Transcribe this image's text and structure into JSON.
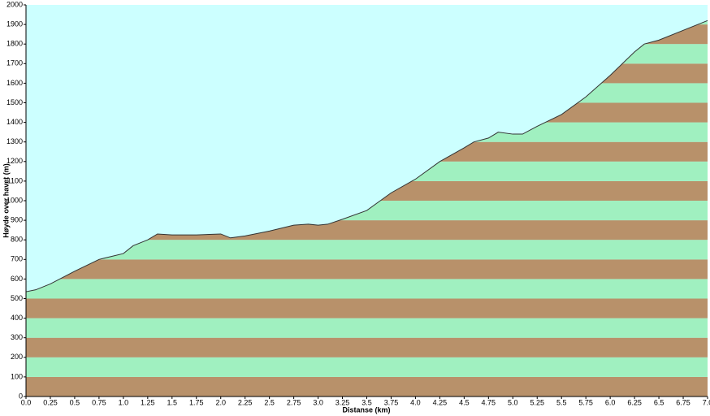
{
  "chart_data": {
    "type": "area",
    "xlabel": "Distanse  (km)",
    "ylabel": "Høyde over havet (m)",
    "x": [
      0,
      0.1,
      0.25,
      0.5,
      0.75,
      1.0,
      1.1,
      1.25,
      1.35,
      1.5,
      1.75,
      2.0,
      2.1,
      2.25,
      2.5,
      2.75,
      2.9,
      3.0,
      3.1,
      3.25,
      3.5,
      3.75,
      4.0,
      4.25,
      4.5,
      4.6,
      4.75,
      4.85,
      5.0,
      5.1,
      5.25,
      5.5,
      5.75,
      6.0,
      6.25,
      6.35,
      6.5,
      6.75,
      7.0
    ],
    "values": [
      535,
      545,
      575,
      640,
      700,
      730,
      770,
      800,
      830,
      825,
      825,
      830,
      810,
      820,
      845,
      875,
      880,
      875,
      880,
      905,
      950,
      1040,
      1110,
      1200,
      1270,
      1300,
      1320,
      1350,
      1340,
      1340,
      1380,
      1440,
      1530,
      1640,
      1760,
      1800,
      1820,
      1870,
      1920
    ],
    "xlim": [
      0,
      7
    ],
    "ylim": [
      0,
      2000
    ],
    "xticks": [
      {
        "value": 0,
        "label": "0.0"
      },
      0.25,
      0.5,
      0.75,
      {
        "value": 1,
        "label": "1.0"
      },
      1.25,
      1.5,
      1.75,
      {
        "value": 2,
        "label": "2.0"
      },
      2.25,
      2.5,
      2.75,
      {
        "value": 3,
        "label": "3.0"
      },
      3.25,
      3.5,
      3.75,
      {
        "value": 4,
        "label": "4.0"
      },
      4.25,
      4.5,
      4.75,
      {
        "value": 5,
        "label": "5.0"
      },
      5.25,
      5.5,
      5.75,
      {
        "value": 6,
        "label": "6.0"
      },
      6.25,
      6.5,
      6.75,
      {
        "value": 7,
        "label": "7.0"
      }
    ],
    "yticks": [
      0,
      100,
      200,
      300,
      400,
      500,
      600,
      700,
      800,
      900,
      1000,
      1100,
      1200,
      1300,
      1400,
      1500,
      1600,
      1700,
      1800,
      1900,
      2000
    ],
    "background_color": "#ccffff",
    "band_colors": [
      "#b8916a",
      "#a0f0c0"
    ],
    "line_color": "#333333"
  }
}
